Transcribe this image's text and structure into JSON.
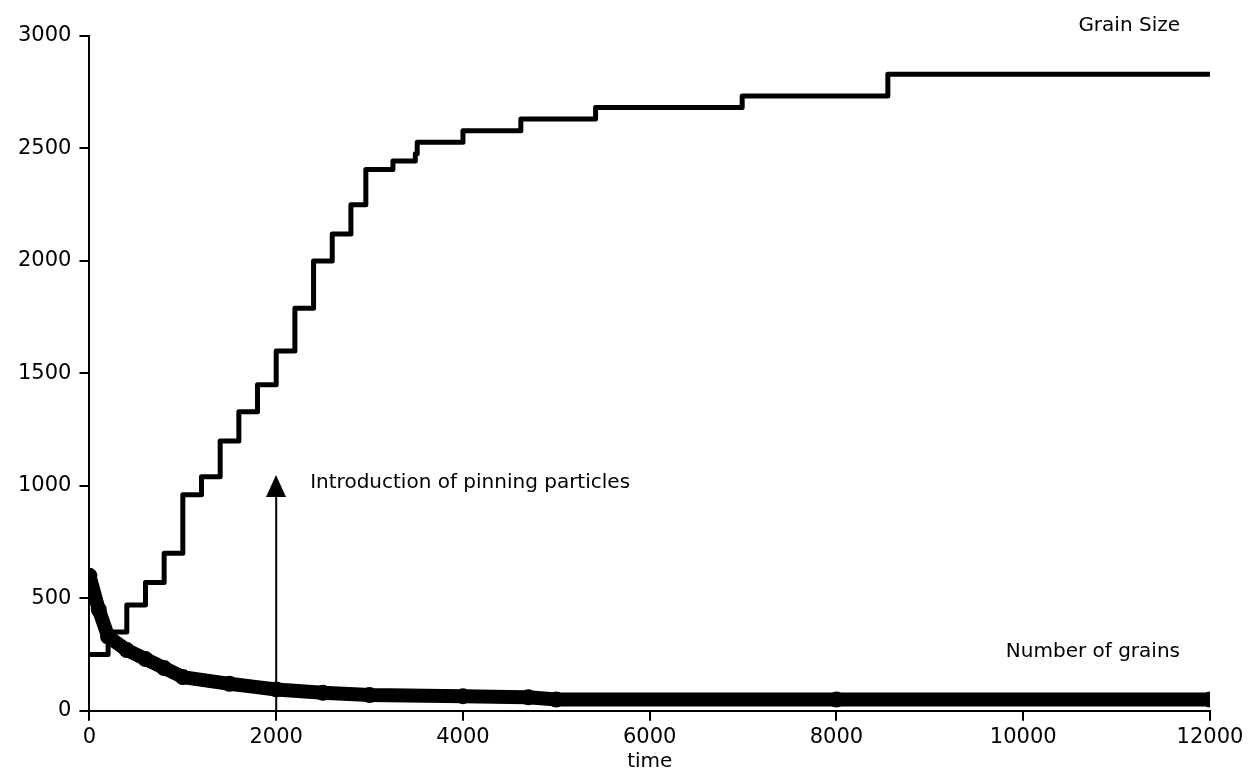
{
  "chart_data": {
    "type": "line",
    "xlabel": "time",
    "xlim": [
      0,
      12000
    ],
    "xticks": [
      0,
      2000,
      4000,
      6000,
      8000,
      10000,
      12000
    ],
    "ylim": [
      0,
      3000
    ],
    "yticks": [
      0,
      500,
      1000,
      1500,
      2000,
      2500,
      3000
    ],
    "grid": false,
    "legend": false,
    "series": [
      {
        "name": "Grain Size",
        "type": "step",
        "color": "#000000",
        "marker": "none",
        "x": [
          0,
          200,
          400,
          600,
          800,
          1000,
          1200,
          1400,
          1600,
          1800,
          2000,
          2200,
          2400,
          2600,
          2800,
          2960,
          3250,
          3490,
          3510,
          4000,
          4620,
          5420,
          6990,
          8550,
          12000
        ],
        "values": [
          250,
          350,
          470,
          570,
          700,
          960,
          1040,
          1200,
          1330,
          1450,
          1600,
          1790,
          2000,
          2120,
          2250,
          2407,
          2444,
          2477,
          2528,
          2579,
          2631,
          2682,
          2733,
          2830,
          2830
        ]
      },
      {
        "name": "Number of grains",
        "color": "#000000",
        "marker": "circle",
        "x": [
          0,
          100,
          200,
          400,
          600,
          800,
          1000,
          1500,
          2000,
          2500,
          3000,
          4000,
          4700,
          5000,
          8000,
          12000
        ],
        "values": [
          600,
          450,
          330,
          270,
          230,
          190,
          150,
          120,
          95,
          80,
          70,
          65,
          60,
          50,
          50,
          50
        ]
      }
    ],
    "ref_lines": [
      {
        "axis": "x",
        "value": 2000,
        "label": "Introduction of pinning particles"
      }
    ]
  }
}
